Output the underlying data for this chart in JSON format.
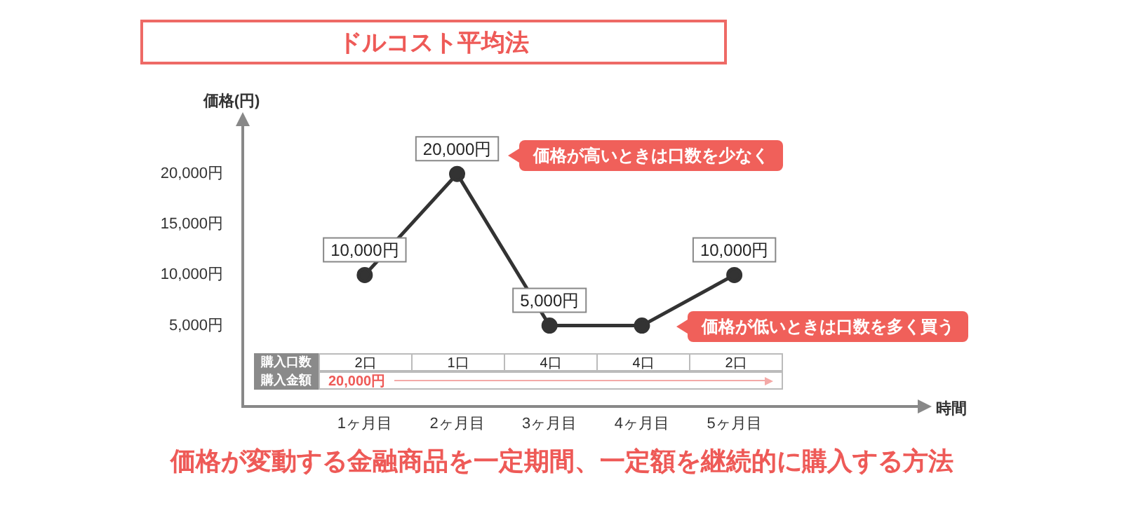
{
  "chart_data": {
    "type": "line",
    "title": "ドルコスト平均法",
    "subtitle": "価格が変動する金融商品を一定期間、一定額を継続的に購入する方法",
    "ylabel": "価格(円)",
    "categories": [
      "1ヶ月目",
      "2ヶ月目",
      "3ヶ月目",
      "4ヶ月目",
      "5ヶ月目"
    ],
    "series": [
      {
        "color": "#333333",
        "values": [
          10000,
          20000,
          5000,
          5000,
          10000
        ],
        "value_labels": [
          "10,000円",
          "20,000円",
          "5,000円",
          null,
          "10,000円"
        ]
      }
    ],
    "ylim": [
      -3000,
      25000
    ],
    "yticks": [
      {
        "value": 5000,
        "label": "5,000円"
      },
      {
        "value": 10000,
        "label": "10,000円"
      },
      {
        "value": 15000,
        "label": "15,000円"
      },
      {
        "value": 20000,
        "label": "20,000円"
      }
    ],
    "grid": false,
    "legend": false,
    "marker": "circle",
    "line_style": "solid",
    "annotations": [
      "購入口数",
      "購入金額",
      "価格が高いときは口数を少なく",
      "価格が低いときは口数を多く買う",
      "2口",
      "1口",
      "4口",
      "4口",
      "2口",
      "20,000円",
      "時間"
    ]
  }
}
